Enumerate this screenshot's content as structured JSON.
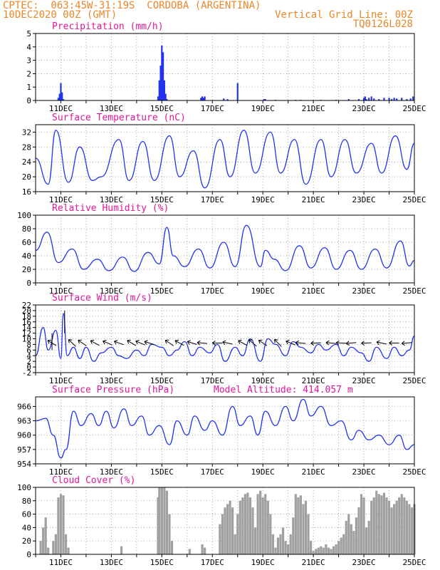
{
  "header": {
    "line1": "CPTEC:  063:45W-31:19S  CORDOBA (ARGENTINA)",
    "line2": "10DEC2020 00Z (GMT)",
    "grid_note": "Vertical Grid Line: 00Z",
    "code": "TQ0126L028"
  },
  "colors": {
    "header": "#e8882a",
    "title": "#e0189a",
    "line": "#2233ee",
    "bar": "#2233ee",
    "cloud": "#a0a0a0",
    "grid": "#888888"
  },
  "chart_data": [
    {
      "type": "bar",
      "title": "Precipitation (mm/h)",
      "ylim": [
        0,
        5
      ],
      "yticks": [
        "0",
        "1",
        "2",
        "3",
        "4",
        "5"
      ],
      "xticks": [
        "11DEC",
        "13DEC",
        "15DEC",
        "17DEC",
        "19DEC",
        "21DEC",
        "23DEC",
        "25DEC"
      ],
      "x": [
        10.9,
        10.95,
        11.0,
        11.05,
        11.1,
        14.85,
        14.9,
        14.95,
        15.0,
        15.05,
        15.1,
        15.15,
        15.2,
        16.55,
        16.6,
        16.65,
        16.7,
        17.45,
        17.6,
        18.0,
        19.05,
        19.1,
        19.5,
        20.3,
        20.5,
        21.3,
        21.9,
        22.4,
        22.8,
        23.0,
        23.05,
        23.1,
        23.2,
        23.3,
        23.4,
        23.6,
        23.8,
        24.0,
        24.1,
        24.2,
        24.3,
        24.5,
        24.7,
        24.85,
        24.95
      ],
      "values": [
        0.2,
        0.5,
        1.3,
        0.6,
        0.1,
        0.3,
        1.5,
        2.6,
        4.1,
        3.6,
        1.5,
        0.5,
        0.1,
        0.2,
        0.3,
        0.2,
        0.3,
        0.15,
        0.1,
        1.3,
        0.1,
        0.1,
        0.05,
        0.05,
        0.05,
        0.05,
        0.05,
        0.1,
        0.1,
        0.2,
        0.3,
        0.1,
        0.2,
        0.3,
        0.15,
        0.1,
        0.2,
        0.2,
        0.1,
        0.2,
        0.15,
        0.2,
        0.1,
        0.15,
        0.3
      ]
    },
    {
      "type": "line",
      "title": "Surface Temperature (nC)",
      "ylim": [
        16,
        34
      ],
      "yticks": [
        "16",
        "20",
        "24",
        "28",
        "32"
      ],
      "xticks": [
        "11DEC",
        "13DEC",
        "15DEC",
        "17DEC",
        "19DEC",
        "21DEC",
        "23DEC",
        "25DEC"
      ],
      "x": [
        10.0,
        10.5,
        10.8,
        11.3,
        11.75,
        12.25,
        12.6,
        13.3,
        13.7,
        14.25,
        14.7,
        15.3,
        15.7,
        16.25,
        16.7,
        17.3,
        17.7,
        18.25,
        18.7,
        19.3,
        19.7,
        20.25,
        20.7,
        21.3,
        21.7,
        22.25,
        22.7,
        23.3,
        23.7,
        24.25,
        24.7,
        25.0
      ],
      "values": [
        25,
        18,
        32.5,
        18.5,
        28,
        19,
        20,
        30,
        19,
        29.5,
        19,
        31,
        20,
        27,
        17,
        30,
        20,
        32.5,
        21,
        32,
        21,
        30,
        18,
        30,
        20,
        30,
        21,
        29,
        21,
        31,
        22,
        29
      ]
    },
    {
      "type": "line",
      "title": "Relative Humidity (%)",
      "ylim": [
        0,
        100
      ],
      "yticks": [
        "0",
        "20",
        "40",
        "60",
        "80",
        "100"
      ],
      "xticks": [
        "11DEC",
        "13DEC",
        "15DEC",
        "17DEC",
        "19DEC",
        "21DEC",
        "23DEC",
        "25DEC"
      ],
      "x": [
        10.0,
        10.45,
        10.9,
        11.45,
        11.9,
        12.45,
        12.9,
        13.45,
        13.9,
        14.45,
        14.9,
        15.2,
        15.45,
        15.9,
        16.45,
        16.9,
        17.45,
        17.9,
        18.35,
        18.9,
        19.1,
        19.45,
        19.9,
        20.45,
        20.9,
        21.45,
        21.9,
        22.45,
        22.9,
        23.45,
        23.9,
        24.45,
        24.8,
        25.0
      ],
      "values": [
        48,
        75,
        30,
        50,
        20,
        35,
        18,
        38,
        17,
        45,
        28,
        82,
        40,
        24,
        50,
        22,
        60,
        24,
        85,
        24,
        48,
        35,
        18,
        55,
        22,
        52,
        20,
        48,
        20,
        50,
        22,
        62,
        25,
        33
      ]
    },
    {
      "type": "line",
      "title": "Surface Wind (m/s)",
      "ylim": [
        -2,
        22
      ],
      "yticks": [
        "-2",
        "0",
        "2",
        "4",
        "6",
        "8",
        "10",
        "12",
        "14",
        "16",
        "18",
        "20",
        "22"
      ],
      "xticks": [
        "11DEC",
        "13DEC",
        "15DEC",
        "17DEC",
        "19DEC",
        "21DEC",
        "23DEC",
        "25DEC"
      ],
      "x": [
        10.0,
        10.3,
        10.5,
        10.8,
        11.0,
        11.1,
        11.25,
        11.5,
        11.75,
        12.0,
        12.3,
        12.6,
        13.0,
        13.3,
        13.6,
        14.0,
        14.3,
        14.6,
        15.0,
        15.3,
        15.6,
        15.9,
        16.2,
        16.5,
        16.9,
        17.2,
        17.5,
        17.9,
        18.2,
        18.5,
        18.9,
        19.2,
        19.5,
        19.9,
        20.2,
        20.5,
        20.9,
        21.2,
        21.5,
        21.9,
        22.2,
        22.5,
        22.9,
        23.2,
        23.5,
        23.9,
        24.2,
        24.5,
        24.8,
        25.0
      ],
      "values": [
        4,
        14,
        6,
        13,
        3,
        19,
        4,
        7,
        3,
        7,
        2,
        5,
        7,
        4,
        3,
        6,
        4,
        8,
        7,
        4,
        6,
        9,
        4,
        7,
        5,
        8,
        2,
        7,
        4,
        10,
        2,
        10,
        8,
        4,
        9,
        7,
        5,
        8,
        6,
        8,
        4,
        7,
        5,
        2,
        7,
        3,
        7,
        4,
        6,
        11
      ]
    },
    {
      "type": "line",
      "title": "Surface Pressure (hPa)",
      "altitude_label": "Model Altitude: 414.057 m",
      "ylim": [
        954,
        968
      ],
      "yticks": [
        "954",
        "957",
        "960",
        "963",
        "966"
      ],
      "xticks": [
        "11DEC",
        "13DEC",
        "15DEC",
        "17DEC",
        "19DEC",
        "21DEC",
        "23DEC",
        "25DEC"
      ],
      "x": [
        10.0,
        10.4,
        10.7,
        11.0,
        11.2,
        11.5,
        11.8,
        12.2,
        12.5,
        12.8,
        13.1,
        13.5,
        13.8,
        14.2,
        14.5,
        14.9,
        15.3,
        15.6,
        16.0,
        16.3,
        16.7,
        17.0,
        17.4,
        17.8,
        18.1,
        18.5,
        18.8,
        19.1,
        19.5,
        19.9,
        20.2,
        20.6,
        20.9,
        21.3,
        21.7,
        22.1,
        22.5,
        22.8,
        23.2,
        23.6,
        24.0,
        24.4,
        24.7,
        25.0
      ],
      "values": [
        963,
        963.5,
        960,
        955.2,
        957,
        965,
        962,
        964.5,
        962,
        965,
        961.5,
        965.5,
        962,
        964,
        960,
        962,
        958,
        963,
        960,
        964,
        961,
        963,
        960,
        966,
        962,
        964,
        960,
        965,
        962,
        966,
        963,
        967.5,
        964,
        966,
        962,
        963,
        959,
        961,
        959,
        960,
        958,
        960,
        957,
        958
      ]
    },
    {
      "type": "bar",
      "title": "Cloud Cover (%)",
      "ylim": [
        0,
        100
      ],
      "yticks": [
        "0",
        "20",
        "40",
        "60",
        "80",
        "100"
      ],
      "xticks": [
        "11DEC",
        "13DEC",
        "15DEC",
        "17DEC",
        "19DEC",
        "21DEC",
        "23DEC",
        "25DEC"
      ],
      "x": [
        10.2,
        10.3,
        10.4,
        10.5,
        10.7,
        10.8,
        10.9,
        11.0,
        11.1,
        11.2,
        11.3,
        13.4,
        14.85,
        14.9,
        15.0,
        15.1,
        15.2,
        15.3,
        15.4,
        16.1,
        16.6,
        16.7,
        17.3,
        17.4,
        17.5,
        17.6,
        17.7,
        17.8,
        17.9,
        18.0,
        18.1,
        18.2,
        18.3,
        18.4,
        18.5,
        18.6,
        18.7,
        18.8,
        18.9,
        19.0,
        19.1,
        19.2,
        19.3,
        19.4,
        19.5,
        19.6,
        19.7,
        19.8,
        19.9,
        20.0,
        20.1,
        20.2,
        20.3,
        20.4,
        20.5,
        20.6,
        20.7,
        20.8,
        20.9,
        21.0,
        21.1,
        21.2,
        21.3,
        21.4,
        21.5,
        21.6,
        21.7,
        21.8,
        21.9,
        22.0,
        22.1,
        22.2,
        22.3,
        22.4,
        22.5,
        22.6,
        22.7,
        22.8,
        22.9,
        23.0,
        23.1,
        23.2,
        23.3,
        23.4,
        23.5,
        23.6,
        23.7,
        23.8,
        23.9,
        24.0,
        24.1,
        24.2,
        24.3,
        24.4,
        24.5,
        24.6,
        24.7,
        24.8,
        24.9,
        25.0
      ],
      "values": [
        20,
        40,
        55,
        10,
        20,
        30,
        85,
        90,
        88,
        30,
        10,
        12,
        85,
        100,
        100,
        100,
        95,
        60,
        20,
        8,
        15,
        10,
        45,
        60,
        70,
        75,
        80,
        70,
        30,
        60,
        80,
        85,
        90,
        92,
        85,
        70,
        40,
        90,
        95,
        85,
        90,
        80,
        60,
        30,
        10,
        25,
        30,
        40,
        20,
        15,
        30,
        55,
        90,
        85,
        88,
        75,
        80,
        60,
        20,
        5,
        8,
        10,
        12,
        10,
        15,
        10,
        8,
        12,
        15,
        20,
        25,
        30,
        50,
        60,
        45,
        35,
        55,
        70,
        90,
        85,
        40,
        50,
        80,
        85,
        95,
        90,
        88,
        92,
        85,
        80,
        70,
        75,
        80,
        85,
        90,
        85,
        80,
        75,
        70,
        75
      ]
    }
  ]
}
